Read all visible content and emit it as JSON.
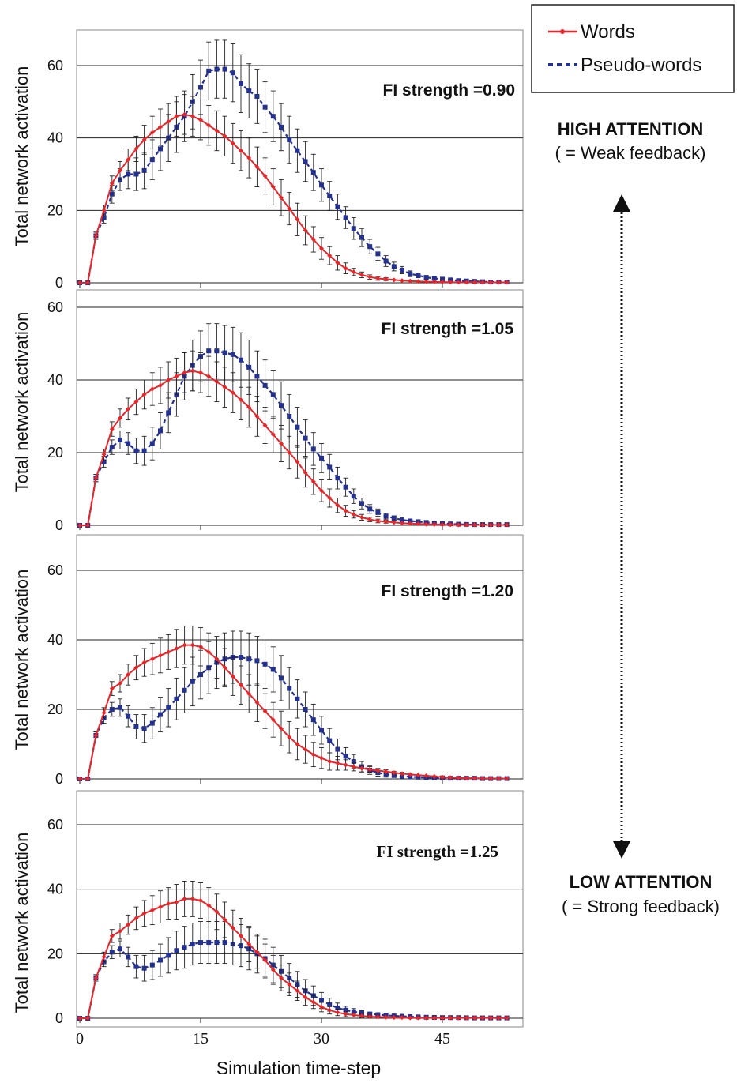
{
  "colors": {
    "words": "#e8262a",
    "pseudo": "#24318f",
    "grid": "#222222",
    "frame": "#888888"
  },
  "legend": {
    "words": "Words",
    "pseudo": "Pseudo-words"
  },
  "attention": {
    "high_title": "HIGH ATTENTION",
    "high_sub": "( = Weak feedback)",
    "low_title": "LOW ATTENTION",
    "low_sub": "( = Strong feedback)"
  },
  "axis": {
    "xlabel": "Simulation time-step",
    "ylabel": "Total network activation",
    "xticks": [
      0,
      15,
      30,
      45
    ],
    "yticks": [
      0,
      20,
      40,
      60
    ],
    "xlim": [
      0,
      53
    ],
    "ylim": [
      0,
      70
    ]
  },
  "chart_data": {
    "type": "line",
    "x": [
      0,
      1,
      2,
      3,
      4,
      5,
      6,
      7,
      8,
      9,
      10,
      11,
      12,
      13,
      14,
      15,
      16,
      17,
      18,
      19,
      20,
      21,
      22,
      23,
      24,
      25,
      26,
      27,
      28,
      29,
      30,
      31,
      32,
      33,
      34,
      35,
      36,
      37,
      38,
      39,
      40,
      41,
      42,
      43,
      44,
      45,
      46,
      47,
      48,
      49,
      50,
      51,
      52,
      53
    ],
    "panels": [
      {
        "label": "FI strength =0.90",
        "series": [
          {
            "name": "Words",
            "values": [
              0,
              0,
              13,
              20,
              27.5,
              31,
              34,
              37,
              39.5,
              41.5,
              43,
              44.5,
              46,
              46.5,
              46,
              45,
              43.5,
              42,
              40.5,
              38.5,
              36.5,
              34.5,
              32,
              29.5,
              26.5,
              23.5,
              20.5,
              17.5,
              14.5,
              12,
              9.5,
              7.5,
              5.5,
              4,
              3,
              2.2,
              1.6,
              1.2,
              1,
              0.8,
              0.6,
              0.5,
              0.4,
              0.3,
              0.25,
              0.2,
              0.15,
              0.1,
              0.1,
              0.1,
              0.1,
              0.1,
              0.1,
              0.1
            ],
            "error": [
              0,
              0,
              1,
              1.5,
              2,
              2.5,
              3,
              3.5,
              4,
              4.5,
              5,
              5,
              5.5,
              5.5,
              5.5,
              5.5,
              5.5,
              5.5,
              5.5,
              5.5,
              5.5,
              5.5,
              5.5,
              5,
              5,
              5,
              4.5,
              4.5,
              4,
              3.5,
              3,
              2.5,
              2,
              1.5,
              1,
              0.8,
              0.6,
              0.5,
              0.4,
              0.3,
              0.3,
              0.2,
              0.2,
              0.2,
              0.1,
              0.1,
              0.1,
              0.1,
              0.1,
              0.1,
              0.1,
              0.1,
              0.1,
              0.1
            ]
          },
          {
            "name": "Pseudo-words",
            "values": [
              0,
              0,
              13,
              18,
              24.5,
              28.5,
              30,
              30,
              31,
              34,
              37,
              40,
              43,
              46,
              50,
              54,
              58.5,
              59,
              59,
              58,
              55,
              53,
              51.5,
              48.5,
              46,
              43,
              39.5,
              36.5,
              33.5,
              30.5,
              27,
              24,
              21,
              18,
              15,
              12.5,
              10,
              8,
              6,
              4.5,
              3.5,
              2.5,
              2,
              1.5,
              1.2,
              1,
              0.8,
              0.6,
              0.5,
              0.4,
              0.3,
              0.2,
              0.2,
              0.2
            ],
            "error": [
              0,
              0,
              1,
              1.5,
              2.5,
              3,
              4,
              4.5,
              5,
              5.5,
              6,
              6.5,
              7,
              7,
              7.5,
              7.5,
              8,
              8,
              8,
              8,
              8,
              7.5,
              7.5,
              7,
              7,
              6.5,
              6.5,
              6,
              5.5,
              5,
              4.5,
              4,
              3.5,
              3,
              3,
              2.5,
              2,
              1.8,
              1.5,
              1.2,
              1,
              0.8,
              0.6,
              0.5,
              0.4,
              0.3,
              0.3,
              0.2,
              0.2,
              0.2,
              0.1,
              0.1,
              0.1,
              0.1
            ]
          }
        ]
      },
      {
        "label": "FI strength =1.05",
        "series": [
          {
            "name": "Words",
            "values": [
              0,
              0,
              13,
              19.5,
              26.5,
              29.5,
              32,
              34,
              36,
              37.5,
              38.5,
              40,
              41,
              42,
              42.5,
              42,
              41,
              39.5,
              38,
              36.5,
              34.5,
              32.5,
              30,
              27.5,
              25,
              22.5,
              20,
              17.5,
              14.5,
              12,
              9.5,
              7.5,
              5.5,
              4,
              3,
              2.2,
              1.6,
              1.2,
              1,
              0.8,
              0.6,
              0.5,
              0.4,
              0.3,
              0.25,
              0.2,
              0.15,
              0.1,
              0.1,
              0.1,
              0.1,
              0.1,
              0.1,
              0.1
            ],
            "error": [
              0,
              0,
              1,
              1.5,
              2,
              2.5,
              3,
              3.5,
              4,
              4.5,
              5,
              5,
              5,
              5.5,
              5.5,
              5.5,
              5.5,
              5.5,
              5.5,
              5.5,
              5.5,
              5.5,
              5.5,
              5,
              5,
              5,
              4.5,
              4.5,
              4,
              3.5,
              3,
              2.5,
              2,
              1.5,
              1,
              0.8,
              0.6,
              0.5,
              0.4,
              0.3,
              0.3,
              0.2,
              0.2,
              0.2,
              0.1,
              0.1,
              0.1,
              0.1,
              0.1,
              0.1,
              0.1,
              0.1,
              0.1,
              0.1
            ]
          },
          {
            "name": "Pseudo-words",
            "values": [
              0,
              0,
              13,
              17.5,
              21.5,
              23.5,
              22.5,
              20.5,
              20.5,
              22.5,
              26,
              31,
              36,
              41,
              44,
              46.5,
              48,
              48,
              47.5,
              47,
              45.5,
              43.5,
              41,
              38.5,
              36,
              33,
              30,
              27,
              24,
              21,
              18.5,
              16,
              13,
              10.5,
              8,
              6,
              4.5,
              3.5,
              2.5,
              2,
              1.5,
              1.2,
              1,
              0.8,
              0.6,
              0.5,
              0.4,
              0.3,
              0.25,
              0.2,
              0.2,
              0.2,
              0.2,
              0.2
            ],
            "error": [
              0,
              0,
              1,
              1.5,
              2,
              2.5,
              3,
              3.5,
              4,
              4.5,
              5,
              5.5,
              6,
              6.5,
              7,
              7,
              7.5,
              7.5,
              7.5,
              7.5,
              7.5,
              7.5,
              7,
              7,
              6.5,
              6.5,
              6,
              5.5,
              5,
              4.5,
              4,
              3.5,
              3,
              2.5,
              2,
              1.5,
              1.2,
              1,
              0.8,
              0.6,
              0.5,
              0.4,
              0.3,
              0.3,
              0.2,
              0.2,
              0.2,
              0.1,
              0.1,
              0.1,
              0.1,
              0.1,
              0.1,
              0.1
            ]
          }
        ]
      },
      {
        "label": "FI strength =1.20",
        "series": [
          {
            "name": "Words",
            "values": [
              0,
              0,
              12.5,
              19,
              26,
              27.5,
              30,
              32,
              33.5,
              34.5,
              35.5,
              36.5,
              37.5,
              38.5,
              38.5,
              38,
              36.5,
              34.5,
              32,
              29.5,
              27,
              24.5,
              22,
              19.5,
              17,
              14.5,
              12,
              10,
              8.5,
              7,
              6,
              5,
              4.5,
              4,
              3.5,
              3,
              2.7,
              2.4,
              2.1,
              1.8,
              1.5,
              1.3,
              1.1,
              0.9,
              0.7,
              0.5,
              0.4,
              0.3,
              0.2,
              0.2,
              0.1,
              0.1,
              0.1,
              0.1
            ],
            "error": [
              0,
              0,
              1,
              1.5,
              2,
              2.5,
              3,
              3.5,
              4,
              4.5,
              5,
              5,
              5.5,
              5.5,
              5.5,
              5.5,
              5.5,
              5.5,
              5.5,
              5.5,
              5.5,
              5.5,
              5.5,
              5,
              5,
              5,
              4.5,
              4.5,
              4,
              3.5,
              3,
              2.5,
              2,
              1.5,
              1.2,
              1,
              0.8,
              0.6,
              0.5,
              0.4,
              0.4,
              0.3,
              0.3,
              0.2,
              0.2,
              0.2,
              0.1,
              0.1,
              0.1,
              0.1,
              0.1,
              0.1,
              0.1,
              0.1
            ]
          },
          {
            "name": "Pseudo-words",
            "values": [
              0,
              0,
              12.5,
              17.5,
              20,
              20.5,
              18,
              15,
              14.5,
              16,
              18.5,
              20.5,
              23,
              25.5,
              28,
              30,
              32,
              33.5,
              34.5,
              35,
              35,
              34.5,
              34,
              33,
              31.5,
              29,
              26,
              23,
              20,
              17,
              14,
              11,
              8.5,
              6.5,
              5,
              3.5,
              2.5,
              1.8,
              1.3,
              1,
              0.8,
              0.6,
              0.5,
              0.4,
              0.3,
              0.3,
              0.2,
              0.2,
              0.2,
              0.2,
              0.1,
              0.1,
              0.1,
              0.1
            ],
            "error": [
              0,
              0,
              1,
              1.5,
              2,
              2.5,
              3,
              3.5,
              4,
              4.5,
              5,
              5.5,
              6,
              6.5,
              7,
              7,
              7.5,
              7.5,
              7.5,
              7.5,
              7.5,
              7.5,
              7,
              7,
              6.5,
              6.5,
              6,
              5.5,
              5,
              4.5,
              4,
              3.5,
              3,
              2.5,
              2,
              1.5,
              1.2,
              1,
              0.8,
              0.6,
              0.5,
              0.4,
              0.3,
              0.3,
              0.2,
              0.2,
              0.2,
              0.1,
              0.1,
              0.1,
              0.1,
              0.1,
              0.1,
              0.1
            ]
          }
        ]
      },
      {
        "label": "FI strength =1.25",
        "series": [
          {
            "name": "Words",
            "values": [
              0,
              0,
              12.5,
              19,
              25.5,
              27,
              29,
              31,
              32.5,
              33.5,
              34.5,
              35.5,
              36,
              37,
              37,
              36.5,
              35,
              33,
              30.5,
              28,
              25.5,
              23,
              20.5,
              18,
              15,
              12.5,
              10.5,
              8.5,
              6.5,
              5,
              3.5,
              2.5,
              1.8,
              1.3,
              1,
              0.7,
              0.5,
              0.4,
              0.3,
              0.2,
              0.2,
              0.1,
              0.1,
              0.1,
              0.1,
              0.1,
              0.1,
              0.1,
              0.1,
              0.1,
              0.1,
              0.1,
              0.1,
              0.1
            ],
            "error": [
              0,
              0,
              1,
              1.5,
              2,
              2.5,
              3,
              3.5,
              4,
              4.5,
              5,
              5,
              5.5,
              5.5,
              5.5,
              5.5,
              5.5,
              5.5,
              5.5,
              5.5,
              5.5,
              5.5,
              5,
              5,
              4.5,
              4,
              3.5,
              3,
              2.5,
              2,
              1.5,
              1.2,
              1,
              0.8,
              0.6,
              0.5,
              0.4,
              0.3,
              0.2,
              0.2,
              0.2,
              0.1,
              0.1,
              0.1,
              0.1,
              0.1,
              0.1,
              0.1,
              0.1,
              0.1,
              0.1,
              0.1,
              0.1,
              0.1
            ]
          },
          {
            "name": "Pseudo-words",
            "values": [
              0,
              0,
              12.5,
              17.5,
              20.5,
              21.5,
              19,
              16,
              15.5,
              16.5,
              18,
              19.5,
              21,
              22,
              23,
              23.5,
              23.5,
              23.5,
              23.5,
              23,
              22.5,
              21.5,
              20,
              18.5,
              16.5,
              14.5,
              12.5,
              10.5,
              8.5,
              7,
              5.5,
              4.2,
              3.2,
              2.5,
              2,
              1.6,
              1.3,
              1.1,
              0.9,
              0.7,
              0.6,
              0.5,
              0.4,
              0.3,
              0.25,
              0.2,
              0.2,
              0.2,
              0.15,
              0.1,
              0.1,
              0.1,
              0.1,
              0.1
            ],
            "error": [
              0,
              0,
              1,
              1.5,
              2,
              2.5,
              3,
              3.5,
              4,
              4.5,
              5,
              5.5,
              6,
              6.5,
              6.5,
              6.5,
              6.5,
              6.5,
              6.5,
              6.5,
              6.5,
              6.5,
              6,
              6,
              5.5,
              5,
              4.5,
              4,
              3.5,
              3,
              2.5,
              2,
              1.5,
              1.2,
              1,
              0.8,
              0.6,
              0.5,
              0.4,
              0.3,
              0.3,
              0.2,
              0.2,
              0.2,
              0.1,
              0.1,
              0.1,
              0.1,
              0.1,
              0.1,
              0.1,
              0.1,
              0.1,
              0.1
            ]
          }
        ]
      }
    ]
  }
}
